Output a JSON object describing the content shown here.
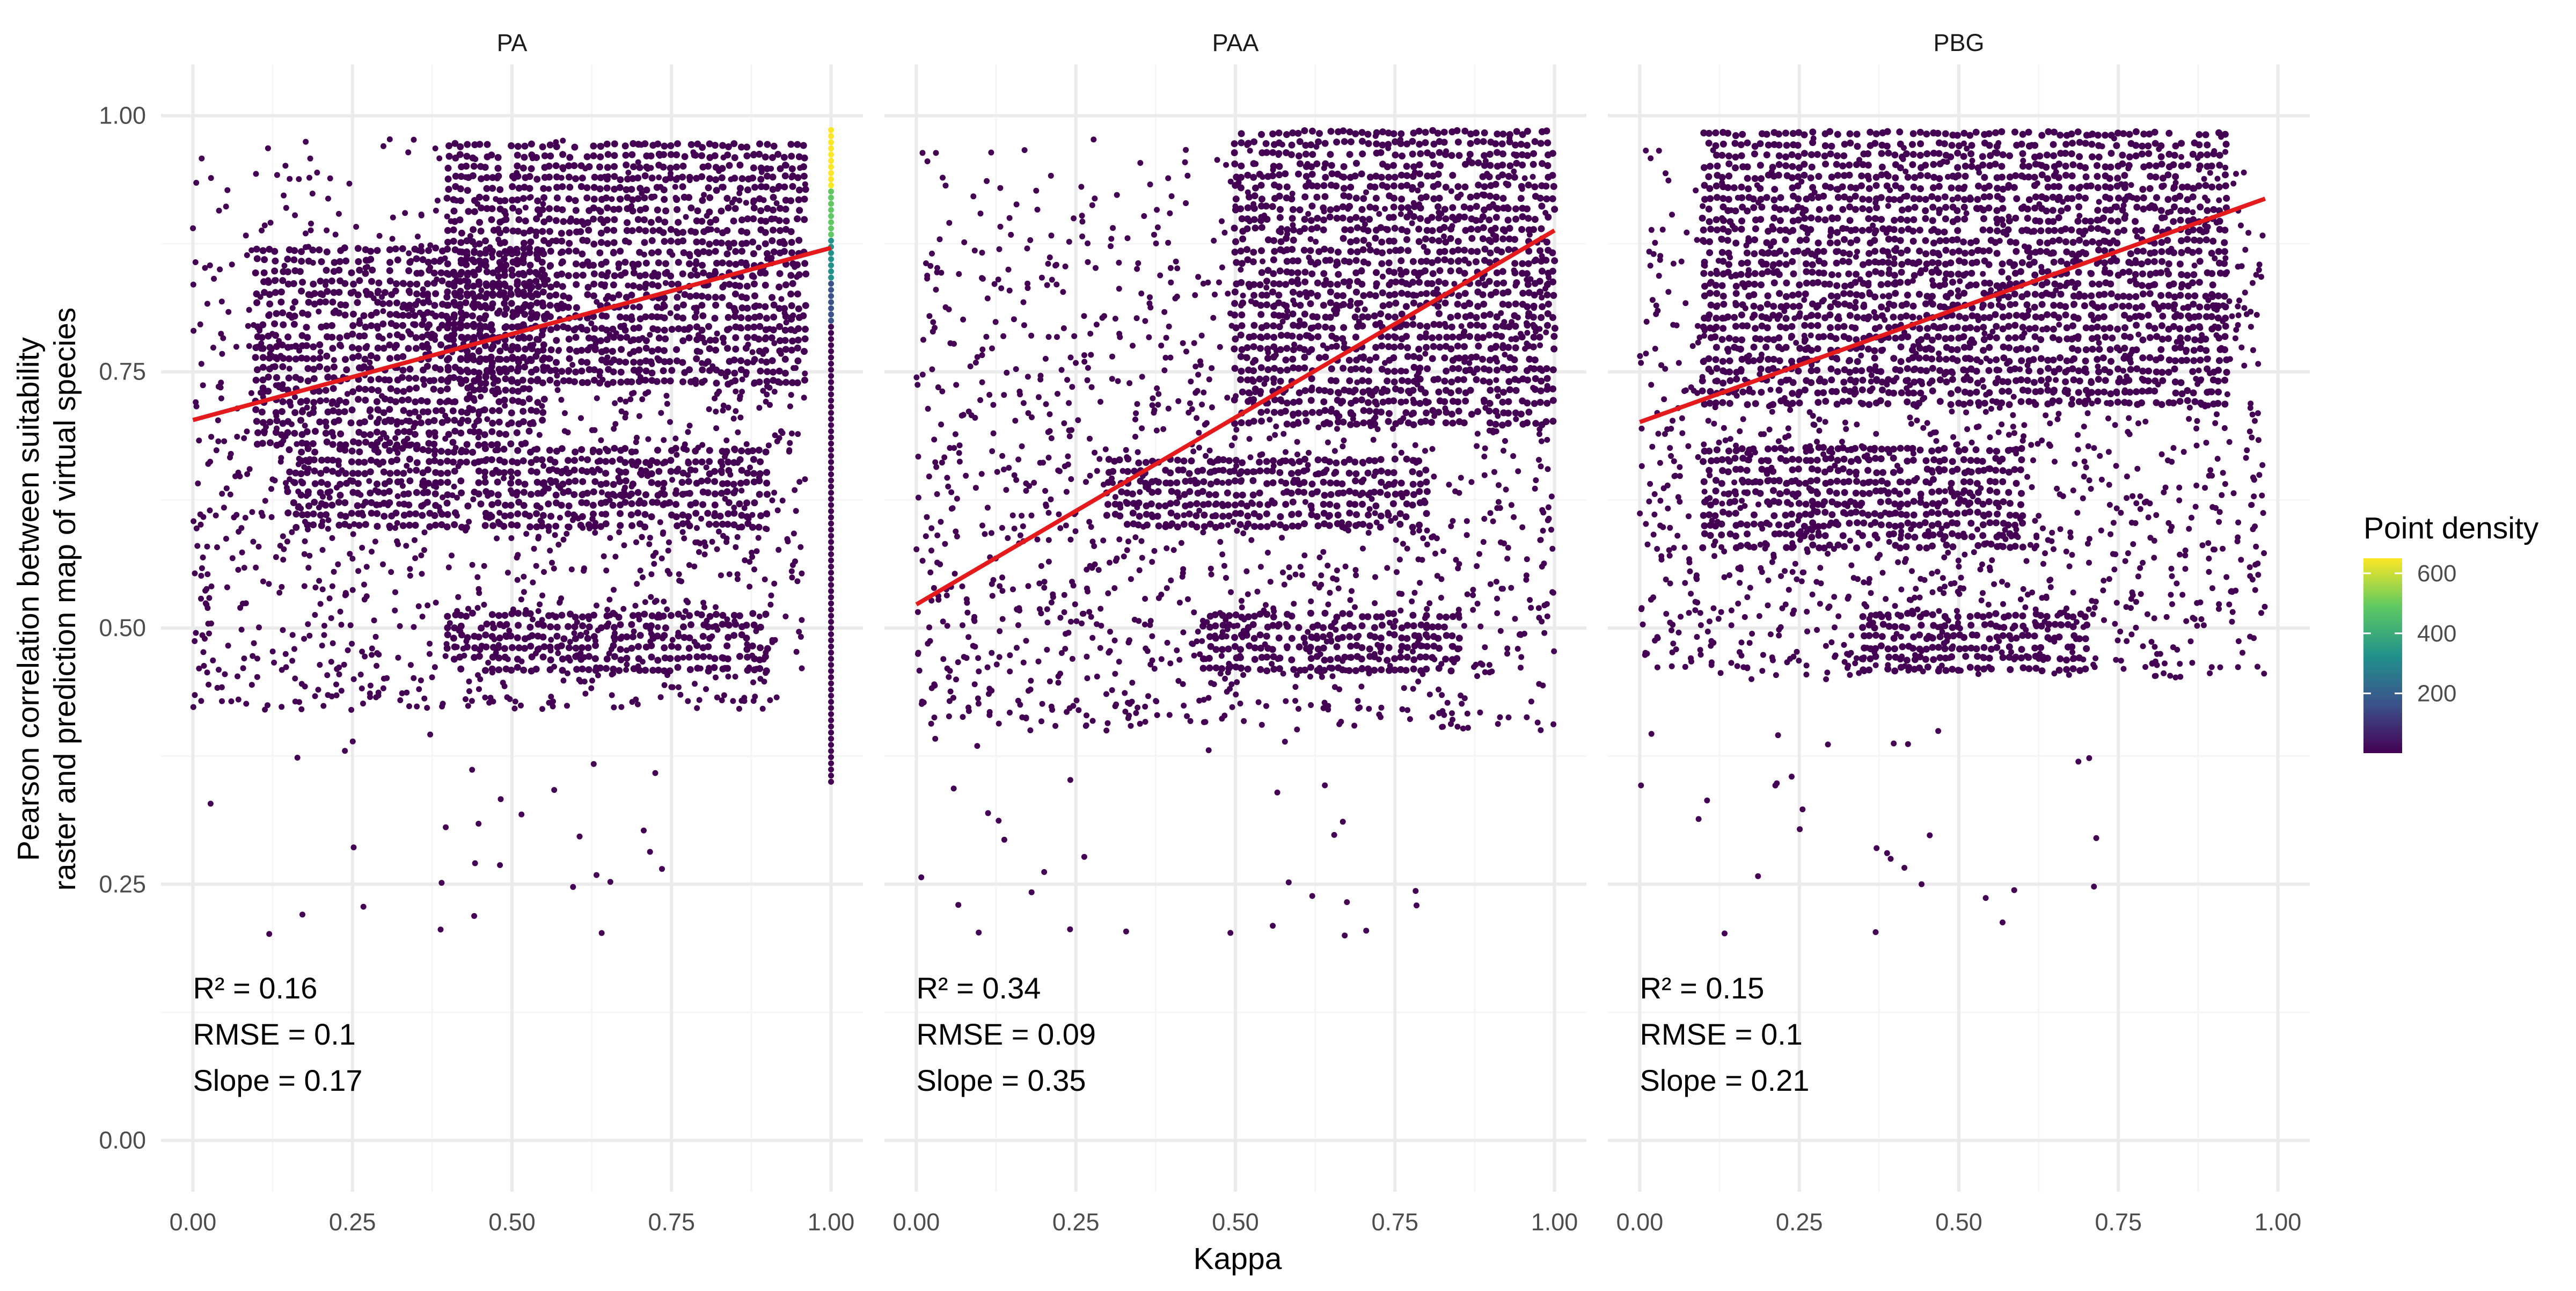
{
  "chart_data": {
    "type": "scatter",
    "subtype": "hexbin-density-with-linear-fit",
    "facets": [
      {
        "name": "PA",
        "fit": {
          "x": [
            0.0,
            1.0
          ],
          "y": [
            0.703,
            0.871
          ]
        },
        "annotations": [
          "R² = 0.16",
          "RMSE = 0.1",
          "Slope = 0.17"
        ],
        "point_region": {
          "x": [
            0.0,
            0.96
          ],
          "y": [
            0.42,
            0.98
          ]
        },
        "dense_clusters": [
          {
            "x": [
              0.4,
              0.96
            ],
            "y": [
              0.74,
              0.98
            ]
          },
          {
            "x": [
              0.1,
              0.55
            ],
            "y": [
              0.68,
              0.87
            ]
          },
          {
            "x": [
              0.15,
              0.9
            ],
            "y": [
              0.6,
              0.68
            ]
          },
          {
            "x": [
              0.4,
              0.9
            ],
            "y": [
              0.46,
              0.52
            ]
          }
        ],
        "bright_column": {
          "x": 1.0,
          "y": [
            0.35,
            0.99
          ]
        }
      },
      {
        "name": "PAA",
        "fit": {
          "x": [
            0.0,
            1.0
          ],
          "y": [
            0.523,
            0.888
          ]
        },
        "annotations": [
          "R² = 0.34",
          "RMSE = 0.09",
          "Slope = 0.35"
        ],
        "point_region": {
          "x": [
            0.0,
            1.0
          ],
          "y": [
            0.4,
            0.99
          ]
        },
        "dense_clusters": [
          {
            "x": [
              0.5,
              1.0
            ],
            "y": [
              0.7,
              0.99
            ]
          },
          {
            "x": [
              0.3,
              0.8
            ],
            "y": [
              0.6,
              0.67
            ]
          },
          {
            "x": [
              0.45,
              0.85
            ],
            "y": [
              0.46,
              0.52
            ]
          }
        ]
      },
      {
        "name": "PBG",
        "fit": {
          "x": [
            0.0,
            0.98
          ],
          "y": [
            0.701,
            0.919
          ]
        },
        "annotations": [
          "R² = 0.15",
          "RMSE = 0.1",
          "Slope = 0.21"
        ],
        "point_region": {
          "x": [
            0.0,
            0.98
          ],
          "y": [
            0.45,
            0.99
          ]
        },
        "dense_clusters": [
          {
            "x": [
              0.1,
              0.92
            ],
            "y": [
              0.72,
              0.99
            ]
          },
          {
            "x": [
              0.1,
              0.6
            ],
            "y": [
              0.58,
              0.68
            ]
          },
          {
            "x": [
              0.35,
              0.7
            ],
            "y": [
              0.46,
              0.52
            ]
          }
        ]
      }
    ],
    "xlabel": "Kappa",
    "ylabel": [
      "Pearson correlation between suitability",
      "raster and prediction map of virtual species"
    ],
    "xlim": [
      -0.05,
      1.05
    ],
    "ylim": [
      -0.05,
      1.05
    ],
    "x_ticks": [
      0,
      0.25,
      0.5,
      0.75,
      1
    ],
    "x_tick_labels": [
      "0.00",
      "0.25",
      "0.50",
      "0.75",
      "1.00"
    ],
    "y_ticks": [
      0,
      0.25,
      0.5,
      0.75,
      1
    ],
    "y_tick_labels": [
      "0.00",
      "0.25",
      "0.50",
      "0.75",
      "1.00"
    ],
    "grid": true,
    "legend": {
      "title": "Point density",
      "position": "right",
      "ticks": [
        200,
        400,
        600
      ],
      "tick_labels": [
        "200",
        "400",
        "600"
      ],
      "range": [
        1,
        650
      ],
      "colors": [
        "#440154",
        "#3b528b",
        "#21918c",
        "#5ec962",
        "#fde725"
      ]
    },
    "colors": {
      "points": "#440154",
      "fit_line": "#e41a1c",
      "grid_major": "#ebebeb",
      "grid_minor": "#f5f5f5"
    }
  }
}
